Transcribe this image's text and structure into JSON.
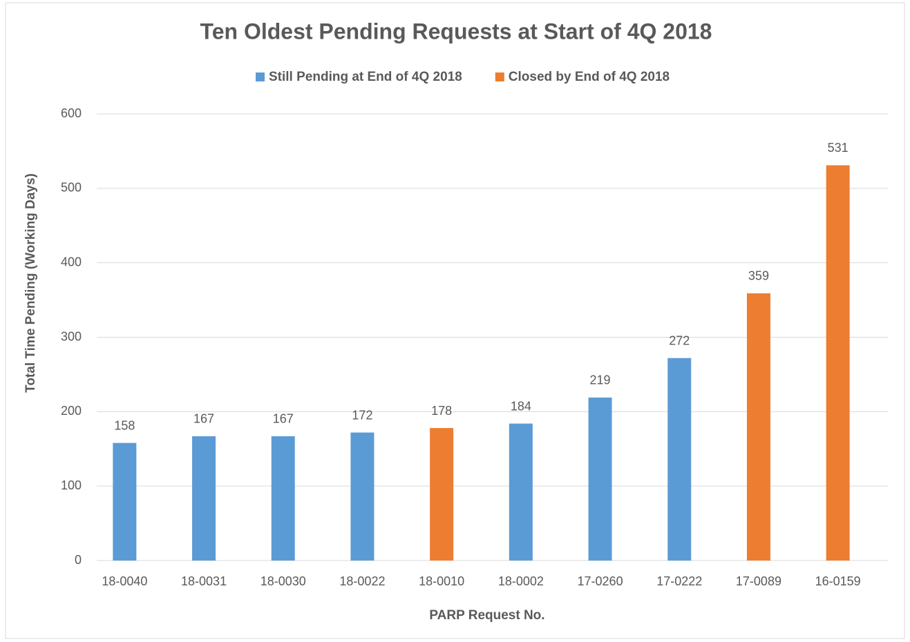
{
  "chart_data": {
    "type": "bar",
    "title": "Ten Oldest Pending Requests at Start of 4Q 2018",
    "x_label": "PARP Request No.",
    "y_label": "Total Time Pending (Working Days)",
    "categories": [
      "18-0040",
      "18-0031",
      "18-0030",
      "18-0022",
      "18-0010",
      "18-0002",
      "17-0260",
      "17-0222",
      "17-0089",
      "16-0159"
    ],
    "series": [
      {
        "name": "Still Pending at End of 4Q 2018",
        "color": "#5b9bd5",
        "values": [
          158,
          167,
          167,
          172,
          null,
          184,
          219,
          272,
          null,
          null
        ]
      },
      {
        "name": "Closed by End of 4Q 2018",
        "color": "#ed7d31",
        "values": [
          null,
          null,
          null,
          null,
          178,
          null,
          null,
          null,
          359,
          531
        ]
      }
    ],
    "ylim": [
      0,
      600
    ],
    "yticks": [
      0,
      100,
      200,
      300,
      400,
      500,
      600
    ],
    "grid": true,
    "legend": "top"
  }
}
